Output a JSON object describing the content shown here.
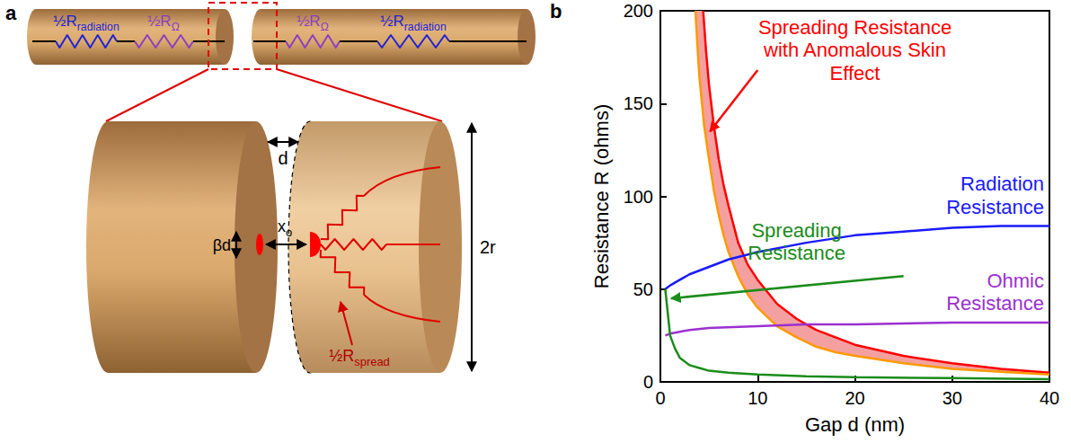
{
  "chart_data": {
    "type": "line",
    "panel": "b",
    "x_label": "Gap d (nm)",
    "y_label": "Resistance R (ohms)",
    "xlim": [
      0,
      40
    ],
    "xticks": [
      0,
      10,
      20,
      30,
      40
    ],
    "ylim": [
      0,
      200
    ],
    "yticks": [
      0,
      50,
      100,
      150,
      200
    ],
    "grid": false,
    "series": [
      {
        "name": "Spreading Resistance with Anomalous Skin Effect",
        "type": "band",
        "color": "#f4a0a0",
        "upper": {
          "color": "#ff0000",
          "x": [
            4.4,
            4.7,
            5,
            5.5,
            6,
            6.5,
            7,
            8,
            9,
            10,
            12,
            14,
            16,
            18,
            20,
            25,
            30,
            35,
            40
          ],
          "values": [
            200,
            178,
            160,
            138,
            120,
            106,
            95,
            75,
            63,
            55,
            42,
            34,
            28,
            24,
            20,
            14,
            10,
            7,
            5
          ]
        },
        "lower": {
          "color": "#ff9900",
          "x": [
            3.6,
            3.8,
            4,
            4.5,
            5,
            5.5,
            6,
            6.5,
            7,
            8,
            9,
            10,
            12,
            14,
            16,
            18,
            20,
            25,
            30,
            35,
            40
          ],
          "values": [
            200,
            182,
            165,
            138,
            120,
            103,
            90,
            79,
            70,
            57,
            47,
            40,
            30,
            24,
            19,
            16,
            14,
            10,
            7,
            5.5,
            4
          ]
        }
      },
      {
        "name": "Radiation Resistance",
        "color": "#1a1aff",
        "x": [
          0.5,
          1,
          2,
          3,
          5,
          7,
          10,
          15,
          20,
          25,
          30,
          35,
          40
        ],
        "values": [
          50,
          52,
          55,
          58,
          62,
          66,
          70,
          75,
          79,
          81,
          83,
          84,
          84
        ]
      },
      {
        "name": "Ohmic Resistance",
        "color": "#9b30d0",
        "x": [
          0.5,
          1,
          2,
          3,
          5,
          10,
          15,
          20,
          30,
          40
        ],
        "values": [
          25,
          26,
          27,
          28,
          29,
          30,
          31,
          31,
          32,
          32
        ]
      },
      {
        "name": "Spreading Resistance",
        "color": "#1a8c1a",
        "x": [
          0.5,
          0.8,
          1,
          1.5,
          2,
          3,
          4,
          5,
          7,
          10,
          15,
          20,
          30,
          40
        ],
        "values": [
          50,
          35,
          25,
          18,
          13,
          9,
          7.5,
          6,
          5,
          4,
          3,
          2.5,
          2,
          1.5
        ]
      }
    ]
  },
  "diagram": {
    "panel": "a",
    "top_left": [
      {
        "text": "½R",
        "sub": "radiation"
      },
      {
        "text": "½R",
        "sub": "Ω"
      }
    ],
    "top_right": [
      {
        "text": "½R",
        "sub": "Ω"
      },
      {
        "text": "½R",
        "sub": "radiation"
      }
    ],
    "gap": {
      "text": "d"
    },
    "spot": {
      "text": "βd"
    },
    "offset": {
      "text": "x",
      "sub": "o"
    },
    "diameter": {
      "text": "2r"
    },
    "spread": {
      "text": "½R",
      "sub": "spread"
    }
  }
}
